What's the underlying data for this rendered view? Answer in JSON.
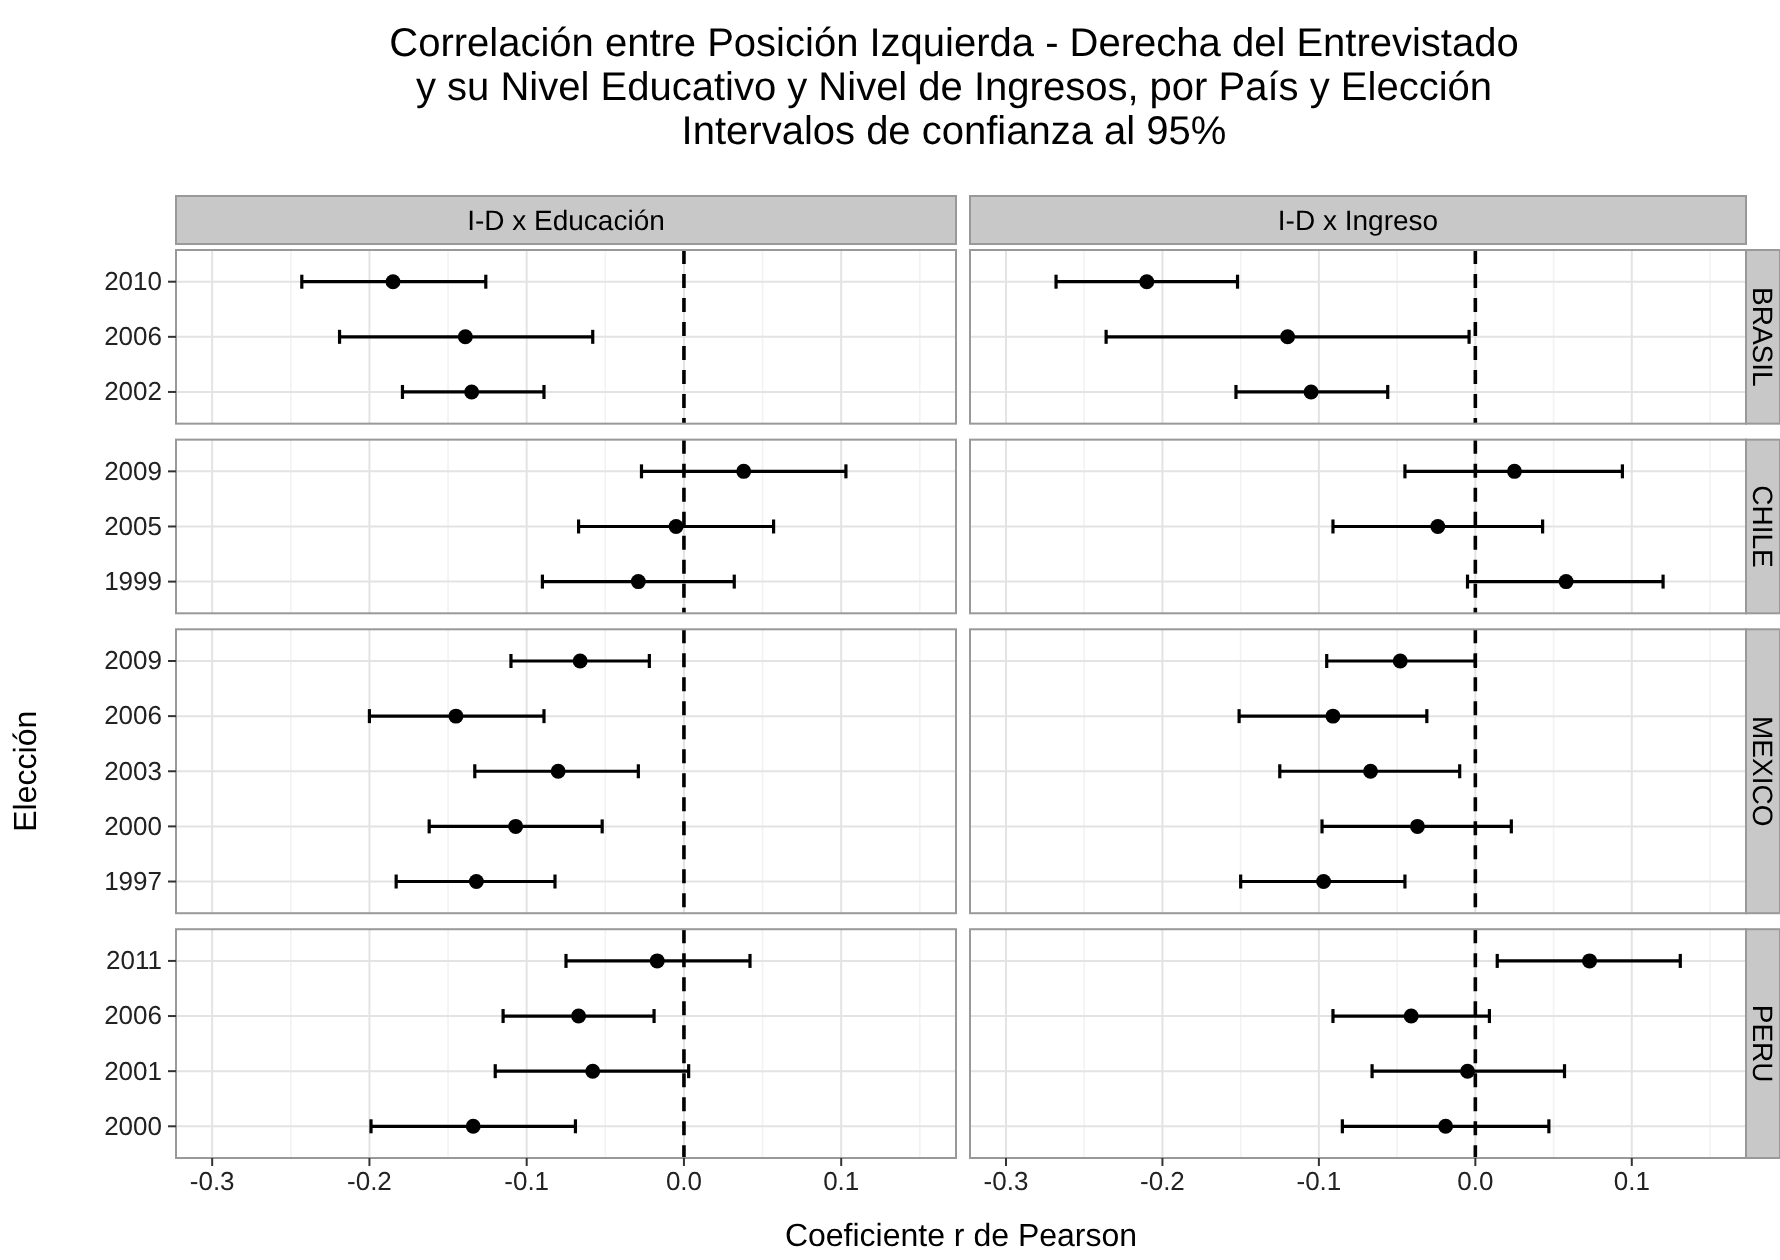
{
  "chart_data": [
    {
      "type": "scatter",
      "title": "Correlación entre Posición Izquierda - Derecha del Entrevistado\ny su Nivel Educativo y Nivel de Ingresos, por País y Elección",
      "subtitle": "Intervalos de confianza al 95%",
      "xlabel": "Coeficiente r de Pearson",
      "annotations": [
        "I-D x Educación"
      ],
      "orientation": "horizontal",
      "categories": [
        "2010",
        "2006",
        "2002"
      ],
      "values": [
        -0.185,
        -0.139,
        -0.135
      ],
      "errors": [
        [
          -0.243,
          -0.126
        ],
        [
          -0.219,
          -0.058
        ],
        [
          -0.179,
          -0.089
        ]
      ],
      "color": "#000000",
      "marker": "circle",
      "xlim": [
        -0.323,
        0.173
      ],
      "xticks": [
        -0.3,
        -0.2,
        -0.1,
        0.0,
        0.1
      ],
      "grid": true,
      "tick_labels": "y",
      "ref_lines": [
        {
          "axis": "x",
          "value": 0,
          "line_style": "dashed",
          "color": "#000000"
        }
      ]
    },
    {
      "type": "scatter",
      "annotations": [
        "I-D x Ingreso",
        "BRASIL"
      ],
      "orientation": "horizontal",
      "categories": [
        "2010",
        "2006",
        "2002"
      ],
      "values": [
        -0.21,
        -0.12,
        -0.105
      ],
      "errors": [
        [
          -0.268,
          -0.152
        ],
        [
          -0.236,
          -0.004
        ],
        [
          -0.153,
          -0.056
        ]
      ],
      "color": "#000000",
      "marker": "circle",
      "xlim": [
        -0.323,
        0.173
      ],
      "xticks": [
        -0.3,
        -0.2,
        -0.1,
        0.0,
        0.1
      ],
      "grid": true,
      "tick_labels": false,
      "ref_lines": [
        {
          "axis": "x",
          "value": 0,
          "line_style": "dashed",
          "color": "#000000"
        }
      ]
    },
    {
      "type": "scatter",
      "orientation": "horizontal",
      "categories": [
        "2009",
        "2005",
        "1999"
      ],
      "values": [
        0.038,
        -0.005,
        -0.029
      ],
      "errors": [
        [
          -0.027,
          0.103
        ],
        [
          -0.067,
          0.057
        ],
        [
          -0.09,
          0.032
        ]
      ],
      "color": "#000000",
      "marker": "circle",
      "xlim": [
        -0.323,
        0.173
      ],
      "xticks": [
        -0.3,
        -0.2,
        -0.1,
        0.0,
        0.1
      ],
      "grid": true,
      "tick_labels": "y",
      "ref_lines": [
        {
          "axis": "x",
          "value": 0,
          "line_style": "dashed",
          "color": "#000000"
        }
      ]
    },
    {
      "type": "scatter",
      "annotations": [
        "CHILE"
      ],
      "orientation": "horizontal",
      "categories": [
        "2009",
        "2005",
        "1999"
      ],
      "values": [
        0.025,
        -0.024,
        0.058
      ],
      "errors": [
        [
          -0.045,
          0.094
        ],
        [
          -0.091,
          0.043
        ],
        [
          -0.005,
          0.12
        ]
      ],
      "color": "#000000",
      "marker": "circle",
      "xlim": [
        -0.323,
        0.173
      ],
      "xticks": [
        -0.3,
        -0.2,
        -0.1,
        0.0,
        0.1
      ],
      "grid": true,
      "tick_labels": false,
      "ref_lines": [
        {
          "axis": "x",
          "value": 0,
          "line_style": "dashed",
          "color": "#000000"
        }
      ]
    },
    {
      "type": "scatter",
      "ylabel": "Elección",
      "orientation": "horizontal",
      "categories": [
        "2009",
        "2006",
        "2003",
        "2000",
        "1997"
      ],
      "values": [
        -0.066,
        -0.145,
        -0.08,
        -0.107,
        -0.132
      ],
      "errors": [
        [
          -0.11,
          -0.022
        ],
        [
          -0.2,
          -0.089
        ],
        [
          -0.133,
          -0.029
        ],
        [
          -0.162,
          -0.052
        ],
        [
          -0.183,
          -0.082
        ]
      ],
      "color": "#000000",
      "marker": "circle",
      "xlim": [
        -0.323,
        0.173
      ],
      "xticks": [
        -0.3,
        -0.2,
        -0.1,
        0.0,
        0.1
      ],
      "grid": true,
      "tick_labels": "y",
      "ref_lines": [
        {
          "axis": "x",
          "value": 0,
          "line_style": "dashed",
          "color": "#000000"
        }
      ]
    },
    {
      "type": "scatter",
      "annotations": [
        "MEXICO"
      ],
      "orientation": "horizontal",
      "categories": [
        "2009",
        "2006",
        "2003",
        "2000",
        "1997"
      ],
      "values": [
        -0.048,
        -0.091,
        -0.067,
        -0.037,
        -0.097
      ],
      "errors": [
        [
          -0.095,
          0.0
        ],
        [
          -0.151,
          -0.031
        ],
        [
          -0.125,
          -0.01
        ],
        [
          -0.098,
          0.023
        ],
        [
          -0.15,
          -0.045
        ]
      ],
      "color": "#000000",
      "marker": "circle",
      "xlim": [
        -0.323,
        0.173
      ],
      "xticks": [
        -0.3,
        -0.2,
        -0.1,
        0.0,
        0.1
      ],
      "grid": true,
      "tick_labels": false,
      "ref_lines": [
        {
          "axis": "x",
          "value": 0,
          "line_style": "dashed",
          "color": "#000000"
        }
      ]
    },
    {
      "type": "scatter",
      "orientation": "horizontal",
      "categories": [
        "2011",
        "2006",
        "2001",
        "2000"
      ],
      "values": [
        -0.017,
        -0.067,
        -0.058,
        -0.134
      ],
      "errors": [
        [
          -0.075,
          0.042
        ],
        [
          -0.115,
          -0.019
        ],
        [
          -0.12,
          0.003
        ],
        [
          -0.199,
          -0.069
        ]
      ],
      "color": "#000000",
      "marker": "circle",
      "xlim": [
        -0.323,
        0.173
      ],
      "xticks": [
        -0.3,
        -0.2,
        -0.1,
        {
          "value": 0,
          "label": "0.0"
        },
        0.1
      ],
      "grid": true,
      "ref_lines": [
        {
          "axis": "x",
          "value": 0,
          "line_style": "dashed",
          "color": "#000000"
        }
      ]
    },
    {
      "type": "scatter",
      "annotations": [
        "PERU"
      ],
      "orientation": "horizontal",
      "categories": [
        "2011",
        "2006",
        "2001",
        "2000"
      ],
      "values": [
        0.073,
        -0.041,
        -0.005,
        -0.019
      ],
      "errors": [
        [
          0.014,
          0.131
        ],
        [
          -0.091,
          0.009
        ],
        [
          -0.066,
          0.057
        ],
        [
          -0.085,
          0.047
        ]
      ],
      "color": "#000000",
      "marker": "circle",
      "xlim": [
        -0.323,
        0.173
      ],
      "xticks": [
        -0.3,
        -0.2,
        -0.1,
        {
          "value": 0,
          "label": "0.0"
        },
        0.1
      ],
      "grid": true,
      "tick_labels": "x",
      "ref_lines": [
        {
          "axis": "x",
          "value": 0,
          "line_style": "dashed",
          "color": "#000000"
        }
      ]
    }
  ]
}
